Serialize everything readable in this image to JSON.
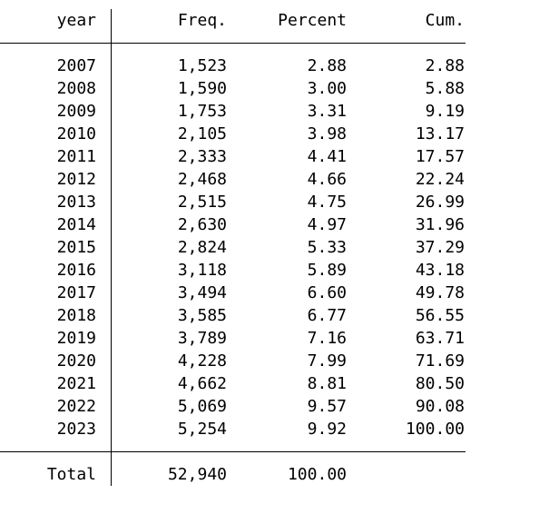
{
  "table": {
    "columns": [
      "year",
      "Freq.",
      "Percent",
      "Cum."
    ],
    "rows": [
      {
        "year": "2007",
        "freq": "1,523",
        "percent": "2.88",
        "cum": "2.88"
      },
      {
        "year": "2008",
        "freq": "1,590",
        "percent": "3.00",
        "cum": "5.88"
      },
      {
        "year": "2009",
        "freq": "1,753",
        "percent": "3.31",
        "cum": "9.19"
      },
      {
        "year": "2010",
        "freq": "2,105",
        "percent": "3.98",
        "cum": "13.17"
      },
      {
        "year": "2011",
        "freq": "2,333",
        "percent": "4.41",
        "cum": "17.57"
      },
      {
        "year": "2012",
        "freq": "2,468",
        "percent": "4.66",
        "cum": "22.24"
      },
      {
        "year": "2013",
        "freq": "2,515",
        "percent": "4.75",
        "cum": "26.99"
      },
      {
        "year": "2014",
        "freq": "2,630",
        "percent": "4.97",
        "cum": "31.96"
      },
      {
        "year": "2015",
        "freq": "2,824",
        "percent": "5.33",
        "cum": "37.29"
      },
      {
        "year": "2016",
        "freq": "3,118",
        "percent": "5.89",
        "cum": "43.18"
      },
      {
        "year": "2017",
        "freq": "3,494",
        "percent": "6.60",
        "cum": "49.78"
      },
      {
        "year": "2018",
        "freq": "3,585",
        "percent": "6.77",
        "cum": "56.55"
      },
      {
        "year": "2019",
        "freq": "3,789",
        "percent": "7.16",
        "cum": "63.71"
      },
      {
        "year": "2020",
        "freq": "4,228",
        "percent": "7.99",
        "cum": "71.69"
      },
      {
        "year": "2021",
        "freq": "4,662",
        "percent": "8.81",
        "cum": "80.50"
      },
      {
        "year": "2022",
        "freq": "5,069",
        "percent": "9.57",
        "cum": "90.08"
      },
      {
        "year": "2023",
        "freq": "5,254",
        "percent": "9.92",
        "cum": "100.00"
      }
    ],
    "total": {
      "label": "Total",
      "freq": "52,940",
      "percent": "100.00",
      "cum": ""
    }
  },
  "colors": {
    "text": "#000000",
    "background": "#ffffff",
    "rule": "#000000"
  }
}
